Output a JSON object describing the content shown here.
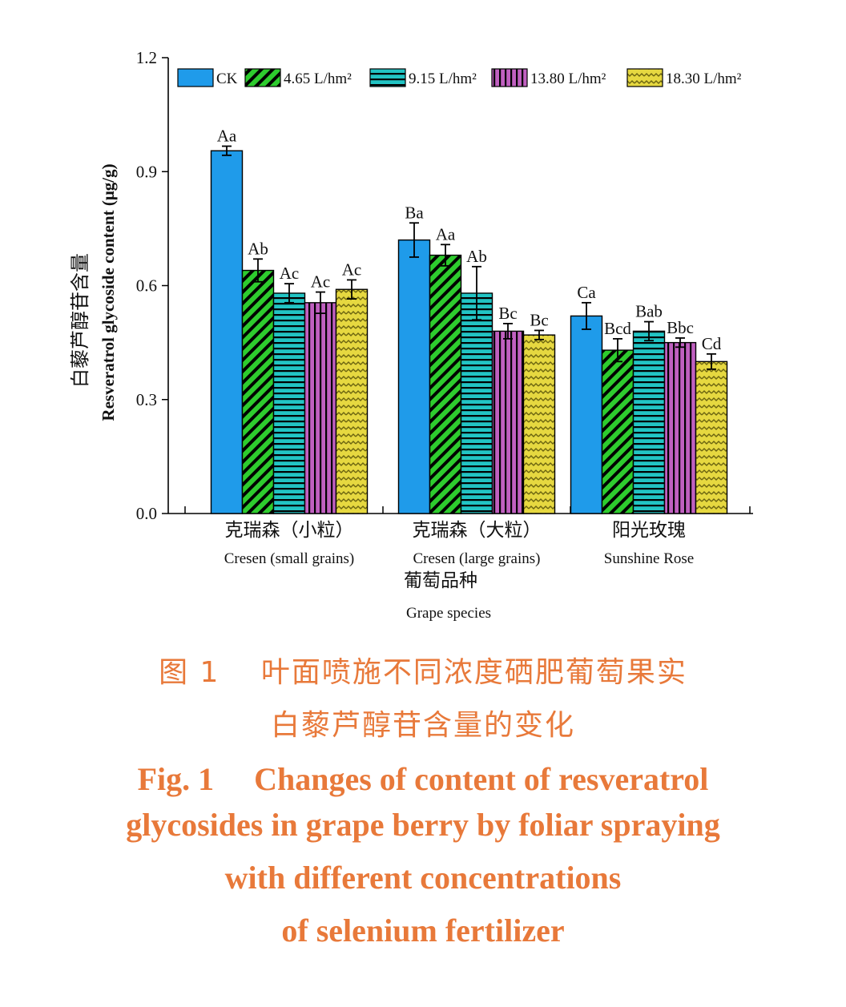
{
  "chart_data": {
    "type": "bar",
    "ylabel_cn": "白藜芦醇苷含量",
    "ylabel_en": "Resveratrol glycoside content (μg/g)",
    "xlabel_cn": "葡萄品种",
    "xlabel_en": "Grape species",
    "ylim": [
      0,
      1.2
    ],
    "yticks": [
      "0.0",
      "0.3",
      "0.6",
      "0.9",
      "1.2"
    ],
    "ytick_values": [
      0,
      0.3,
      0.6,
      0.9,
      1.2
    ],
    "legend_position": "top",
    "categories": [
      {
        "cn": "克瑞森（小粒）",
        "en": "Cresen (small grains)"
      },
      {
        "cn": "克瑞森（大粒）",
        "en": "Cresen (large grains)"
      },
      {
        "cn": "阳光玫瑰",
        "en": "Sunshine Rose"
      }
    ],
    "series": [
      {
        "name": "CK",
        "color": "#1f9bea",
        "pattern": "solid",
        "values": [
          0.955,
          0.72,
          0.52
        ],
        "errors": [
          0.012,
          0.045,
          0.035
        ],
        "labels": [
          "Aa",
          "Ba",
          "Ca"
        ]
      },
      {
        "name": "4.65 L/hm²",
        "color": "#2ecc2e",
        "pattern": "diagonal",
        "values": [
          0.64,
          0.68,
          0.43
        ],
        "errors": [
          0.03,
          0.028,
          0.03
        ],
        "labels": [
          "Ab",
          "Aa",
          "Bcd"
        ]
      },
      {
        "name": "9.15 L/hm²",
        "color": "#22c4c4",
        "pattern": "horizontal",
        "values": [
          0.58,
          0.58,
          0.48
        ],
        "errors": [
          0.025,
          0.07,
          0.025
        ],
        "labels": [
          "Ac",
          "Ab",
          "Bab"
        ]
      },
      {
        "name": "13.80 L/hm²",
        "color": "#c060c0",
        "pattern": "vertical",
        "values": [
          0.555,
          0.48,
          0.45
        ],
        "errors": [
          0.028,
          0.02,
          0.012
        ],
        "labels": [
          "Ac",
          "Bc",
          "Bbc"
        ]
      },
      {
        "name": "18.30 L/hm²",
        "color": "#e6d840",
        "pattern": "zigzag",
        "values": [
          0.59,
          0.47,
          0.4
        ],
        "errors": [
          0.025,
          0.012,
          0.02
        ],
        "labels": [
          "Ac",
          "Bc",
          "Cd"
        ]
      }
    ]
  },
  "caption": {
    "cn_line1": "图 1　 叶面喷施不同浓度硒肥葡萄果实",
    "cn_line2": "白藜芦醇苷含量的变化",
    "en_line1": "Fig. 1　 Changes of content of resveratrol",
    "en_line2": "glycosides in grape berry by foliar spraying",
    "en_line3": "with different concentrations",
    "en_line4": "of selenium fertilizer"
  }
}
